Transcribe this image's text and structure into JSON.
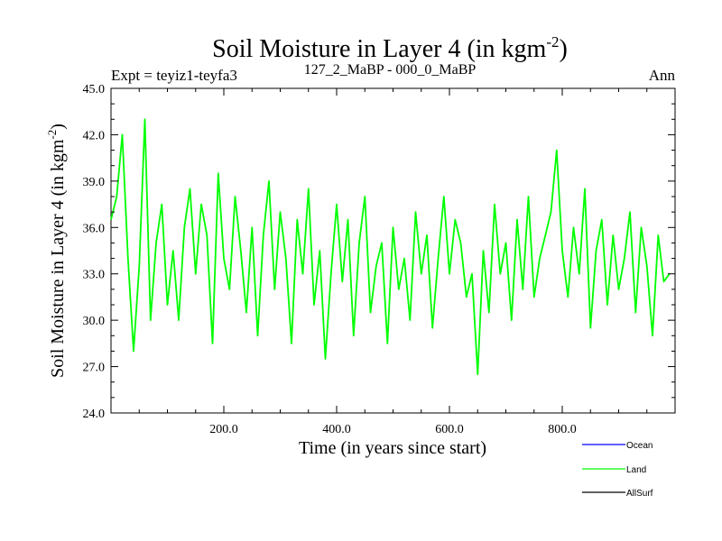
{
  "header": {
    "title": "Soil Moisture in Layer 4 (in kgm",
    "title_sup": "-2",
    "title_close": ")",
    "experiment": "Expt = teyiz1-teyfa3",
    "period": "127_2_MaBP - 000_0_MaBP",
    "season": "Ann"
  },
  "legend": {
    "items": [
      {
        "label": "Ocean",
        "color": "#0000ff"
      },
      {
        "label": "Land",
        "color": "#00ff00"
      },
      {
        "label": "AllSurf",
        "color": "#000000"
      }
    ]
  },
  "chart_data": {
    "type": "line",
    "title": "Soil Moisture in Layer 4 (in kgm-2)",
    "xlabel": "Time (in years since start)",
    "ylabel": "Soil Moisture in Layer 4 (in kgm-2)",
    "xlim": [
      0,
      1000
    ],
    "ylim": [
      24.0,
      45.0
    ],
    "x_ticks": [
      200,
      400,
      600,
      800
    ],
    "x_tick_labels": [
      "200.0",
      "400.0",
      "600.0",
      "800.0"
    ],
    "y_ticks": [
      24,
      27,
      30,
      33,
      36,
      39,
      42,
      45
    ],
    "y_tick_labels": [
      "24.0",
      "27.0",
      "30.0",
      "33.0",
      "36.0",
      "39.0",
      "42.0",
      "45.0"
    ],
    "series": [
      {
        "name": "Land",
        "color": "#00ff00",
        "x_start": 0,
        "x_step": 10,
        "values": [
          36.5,
          38.0,
          42.0,
          34.0,
          28.0,
          33.5,
          43.0,
          30.0,
          35.0,
          37.5,
          31.0,
          34.5,
          30.0,
          36.0,
          38.5,
          33.0,
          37.5,
          35.5,
          28.5,
          39.5,
          34.0,
          32.0,
          38.0,
          34.5,
          30.5,
          36.0,
          29.0,
          35.5,
          39.0,
          32.0,
          37.0,
          34.0,
          28.5,
          36.5,
          33.0,
          38.5,
          31.0,
          34.5,
          27.5,
          33.0,
          37.5,
          32.5,
          36.5,
          29.0,
          35.0,
          38.0,
          30.5,
          33.5,
          35.0,
          28.5,
          36.0,
          32.0,
          34.0,
          30.0,
          37.0,
          33.0,
          35.5,
          29.5,
          34.0,
          38.0,
          33.0,
          36.5,
          35.0,
          31.5,
          33.0,
          26.5,
          34.5,
          30.5,
          37.5,
          33.0,
          35.0,
          30.0,
          36.5,
          32.0,
          38.0,
          31.5,
          34.0,
          35.5,
          37.0,
          41.0,
          34.5,
          31.5,
          36.0,
          33.0,
          38.5,
          29.5,
          34.5,
          36.5,
          31.0,
          35.5,
          32.0,
          34.0,
          37.0,
          30.5,
          36.0,
          33.5,
          29.0,
          35.5,
          32.5,
          33.0
        ]
      },
      {
        "name": "Ocean",
        "color": "#0000ff",
        "values": []
      },
      {
        "name": "AllSurf",
        "color": "#000000",
        "values": []
      }
    ]
  }
}
